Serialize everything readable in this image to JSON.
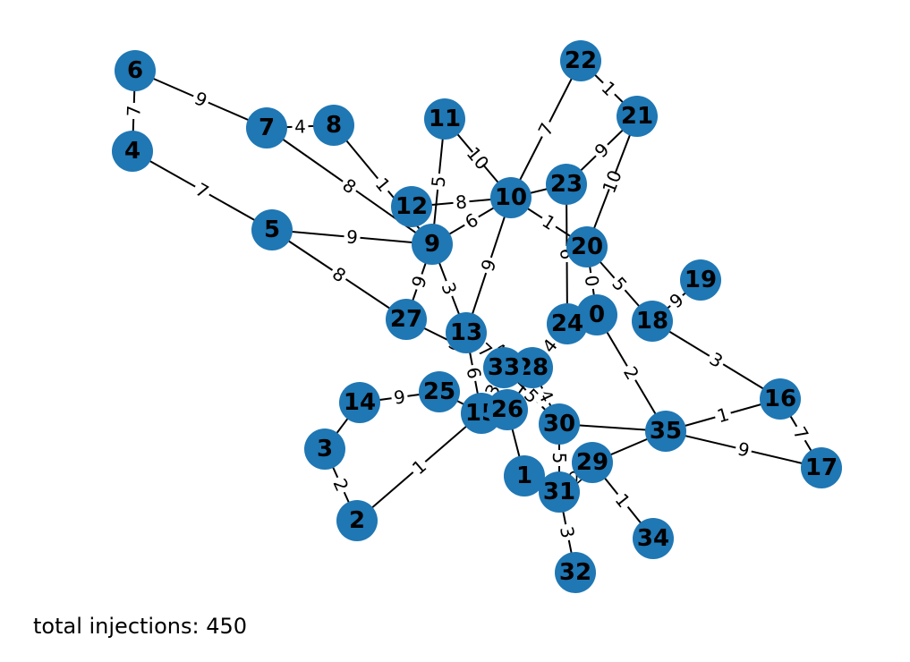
{
  "graph": {
    "node_color": "#1f77b4",
    "edge_color": "#000000",
    "nodes": [
      {
        "id": "0"
      },
      {
        "id": "1"
      },
      {
        "id": "2"
      },
      {
        "id": "3"
      },
      {
        "id": "4"
      },
      {
        "id": "5"
      },
      {
        "id": "6"
      },
      {
        "id": "7"
      },
      {
        "id": "8"
      },
      {
        "id": "9"
      },
      {
        "id": "10"
      },
      {
        "id": "11"
      },
      {
        "id": "12"
      },
      {
        "id": "13"
      },
      {
        "id": "14"
      },
      {
        "id": "15"
      },
      {
        "id": "16"
      },
      {
        "id": "17"
      },
      {
        "id": "18"
      },
      {
        "id": "19"
      },
      {
        "id": "20"
      },
      {
        "id": "21"
      },
      {
        "id": "22"
      },
      {
        "id": "23"
      },
      {
        "id": "24"
      },
      {
        "id": "25"
      },
      {
        "id": "26"
      },
      {
        "id": "27"
      },
      {
        "id": "28"
      },
      {
        "id": "29"
      },
      {
        "id": "30"
      },
      {
        "id": "31"
      },
      {
        "id": "32"
      },
      {
        "id": "33"
      },
      {
        "id": "34"
      },
      {
        "id": "35"
      }
    ],
    "edges": [
      {
        "source": "6",
        "target": "4",
        "label": "7"
      },
      {
        "source": "6",
        "target": "7",
        "label": "9"
      },
      {
        "source": "7",
        "target": "8",
        "label": "4"
      },
      {
        "source": "7",
        "target": "9",
        "label": "8"
      },
      {
        "source": "8",
        "target": "9",
        "label": "1"
      },
      {
        "source": "4",
        "target": "5",
        "label": "7"
      },
      {
        "source": "5",
        "target": "9",
        "label": "9"
      },
      {
        "source": "5",
        "target": "27",
        "label": "8"
      },
      {
        "source": "11",
        "target": "9",
        "label": "5"
      },
      {
        "source": "11",
        "target": "10",
        "label": "10"
      },
      {
        "source": "12",
        "target": "10",
        "label": "8"
      },
      {
        "source": "9",
        "target": "10",
        "label": "6"
      },
      {
        "source": "10",
        "target": "22",
        "label": "7"
      },
      {
        "source": "22",
        "target": "21",
        "label": "1"
      },
      {
        "source": "23",
        "target": "21",
        "label": "9"
      },
      {
        "source": "21",
        "target": "20",
        "label": "10"
      },
      {
        "source": "10",
        "target": "23",
        "label": ""
      },
      {
        "source": "10",
        "target": "20",
        "label": "1"
      },
      {
        "source": "23",
        "target": "24",
        "label": "6"
      },
      {
        "source": "20",
        "target": "18",
        "label": "5"
      },
      {
        "source": "18",
        "target": "19",
        "label": "9"
      },
      {
        "source": "18",
        "target": "16",
        "label": "3"
      },
      {
        "source": "16",
        "target": "17",
        "label": "7"
      },
      {
        "source": "16",
        "target": "35",
        "label": "1"
      },
      {
        "source": "35",
        "target": "17",
        "label": "9"
      },
      {
        "source": "0",
        "target": "35",
        "label": "2"
      },
      {
        "source": "20",
        "target": "0",
        "label": "0"
      },
      {
        "source": "30",
        "target": "35",
        "label": ""
      },
      {
        "source": "29",
        "target": "35",
        "label": ""
      },
      {
        "source": "29",
        "target": "31",
        "label": "2"
      },
      {
        "source": "30",
        "target": "31",
        "label": "5"
      },
      {
        "source": "31",
        "target": "32",
        "label": "3"
      },
      {
        "source": "29",
        "target": "34",
        "label": "1"
      },
      {
        "source": "26",
        "target": "1",
        "label": ""
      },
      {
        "source": "15",
        "target": "2",
        "label": "1"
      },
      {
        "source": "3",
        "target": "2",
        "label": "2"
      },
      {
        "source": "3",
        "target": "14",
        "label": ""
      },
      {
        "source": "14",
        "target": "25",
        "label": "9"
      },
      {
        "source": "9",
        "target": "13",
        "label": "3"
      },
      {
        "source": "10",
        "target": "13",
        "label": "9"
      },
      {
        "source": "13",
        "target": "15",
        "label": "6"
      },
      {
        "source": "13",
        "target": "28",
        "label": "4"
      },
      {
        "source": "13",
        "target": "33",
        "label": "7"
      },
      {
        "source": "9",
        "target": "27",
        "label": "9"
      },
      {
        "source": "27",
        "target": "33",
        "label": "3"
      },
      {
        "source": "24",
        "target": "28",
        "label": "4"
      },
      {
        "source": "28",
        "target": "30",
        "label": "4"
      },
      {
        "source": "33",
        "target": "30",
        "label": "5"
      },
      {
        "source": "15",
        "target": "33",
        "label": "3"
      },
      {
        "source": "26",
        "target": "24",
        "label": ""
      },
      {
        "source": "25",
        "target": "15",
        "label": ""
      },
      {
        "source": "0",
        "target": "24",
        "label": ""
      }
    ]
  },
  "footer": {
    "text": "total injections: 450"
  }
}
